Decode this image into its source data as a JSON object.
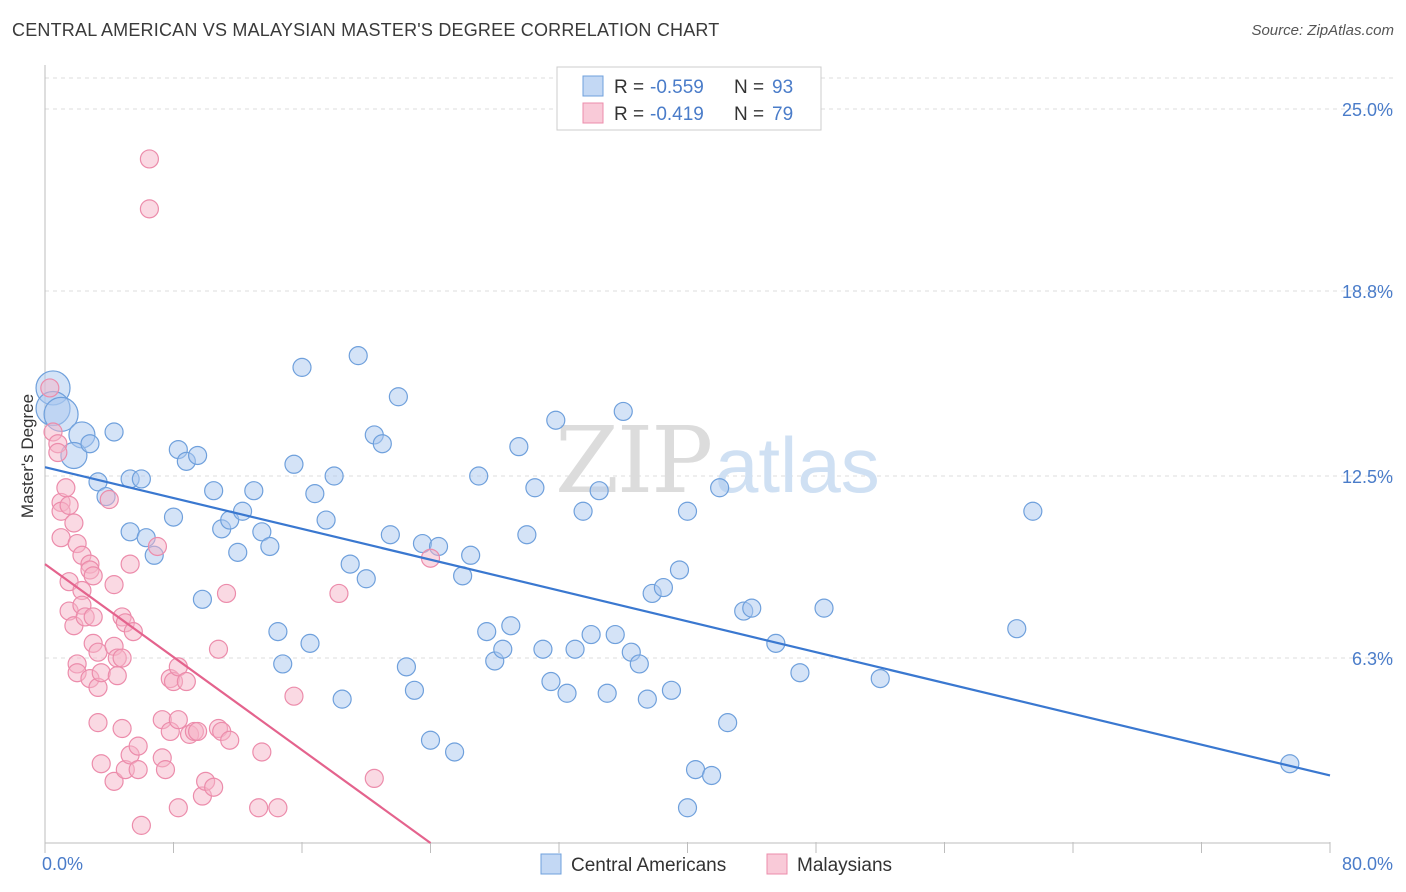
{
  "title": "CENTRAL AMERICAN VS MALAYSIAN MASTER'S DEGREE CORRELATION CHART",
  "source": "Source: ZipAtlas.com",
  "watermark": {
    "zip": "ZIP",
    "atlas": "atlas"
  },
  "chart_data": {
    "type": "scatter",
    "ylabel": "Master's Degree",
    "xlim": [
      0,
      80
    ],
    "ylim": [
      0,
      26.5
    ],
    "y_ticks": [
      {
        "value": 6.3,
        "label": "6.3%"
      },
      {
        "value": 12.5,
        "label": "12.5%"
      },
      {
        "value": 18.8,
        "label": "18.8%"
      },
      {
        "value": 25.0,
        "label": "25.0%"
      }
    ],
    "x_tick_labels": [
      {
        "value": 0,
        "label": "0.0%"
      },
      {
        "value": 80,
        "label": "80.0%"
      }
    ],
    "legend_box": [
      {
        "r_label": "R =",
        "r_value": "-0.559",
        "n_label": "N =",
        "n_value": "93",
        "color": "#a9c8f0"
      },
      {
        "r_label": "R =",
        "r_value": "-0.419",
        "n_label": "N =",
        "n_value": "79",
        "color": "#f6b3c8"
      }
    ],
    "series": [
      {
        "name": "Central Americans",
        "color": "#a9c8f0",
        "stroke": "#6fa0dc",
        "line_color": "#3a78d0",
        "trend": {
          "x0": 0,
          "y0": 12.8,
          "x1": 80,
          "y1": 2.3
        },
        "points": [
          [
            0.5,
            15.5,
            "l"
          ],
          [
            0.5,
            14.8,
            "l"
          ],
          [
            1,
            14.6,
            "l"
          ],
          [
            2.3,
            13.9,
            "m"
          ],
          [
            1.8,
            13.2,
            "m"
          ],
          [
            2.8,
            13.6
          ],
          [
            4.3,
            14.0
          ],
          [
            3.3,
            12.3
          ],
          [
            5.3,
            12.4
          ],
          [
            6.0,
            12.4
          ],
          [
            3.8,
            11.8
          ],
          [
            5.3,
            10.6
          ],
          [
            6.3,
            10.4
          ],
          [
            6.8,
            9.8
          ],
          [
            8.0,
            11.1
          ],
          [
            8.3,
            13.4
          ],
          [
            8.8,
            13.0
          ],
          [
            9.5,
            13.2
          ],
          [
            9.8,
            8.3
          ],
          [
            10.5,
            12.0
          ],
          [
            11.0,
            10.7
          ],
          [
            11.5,
            11.0
          ],
          [
            12.0,
            9.9
          ],
          [
            12.3,
            11.3
          ],
          [
            13.0,
            12.0
          ],
          [
            13.5,
            10.6
          ],
          [
            14.0,
            10.1
          ],
          [
            14.5,
            7.2
          ],
          [
            14.8,
            6.1
          ],
          [
            15.5,
            12.9
          ],
          [
            16.0,
            16.2
          ],
          [
            16.5,
            6.8
          ],
          [
            16.8,
            11.9
          ],
          [
            17.5,
            11.0
          ],
          [
            18.0,
            12.5
          ],
          [
            18.5,
            4.9
          ],
          [
            19.0,
            9.5
          ],
          [
            19.5,
            16.6
          ],
          [
            20.0,
            9.0
          ],
          [
            20.5,
            13.9
          ],
          [
            21.0,
            13.6
          ],
          [
            21.5,
            10.5
          ],
          [
            22.0,
            15.2
          ],
          [
            22.5,
            6.0
          ],
          [
            23.0,
            5.2
          ],
          [
            23.5,
            10.2
          ],
          [
            24.0,
            3.5
          ],
          [
            24.5,
            10.1
          ],
          [
            25.5,
            3.1
          ],
          [
            26.0,
            9.1
          ],
          [
            26.5,
            9.8
          ],
          [
            27.0,
            12.5
          ],
          [
            27.5,
            7.2
          ],
          [
            28.0,
            6.2
          ],
          [
            28.5,
            6.6
          ],
          [
            29.0,
            7.4
          ],
          [
            29.5,
            13.5
          ],
          [
            30.0,
            10.5
          ],
          [
            30.5,
            12.1
          ],
          [
            31.0,
            6.6
          ],
          [
            31.5,
            5.5
          ],
          [
            31.8,
            14.4
          ],
          [
            32.5,
            5.1
          ],
          [
            33.0,
            6.6
          ],
          [
            33.5,
            11.3
          ],
          [
            34.0,
            7.1
          ],
          [
            34.5,
            12.0
          ],
          [
            35.0,
            5.1
          ],
          [
            35.5,
            7.1
          ],
          [
            36.0,
            14.7
          ],
          [
            36.5,
            6.5
          ],
          [
            37.0,
            6.1
          ],
          [
            37.5,
            4.9
          ],
          [
            37.8,
            8.5
          ],
          [
            38.5,
            8.7
          ],
          [
            39.0,
            5.2
          ],
          [
            39.5,
            9.3
          ],
          [
            40.0,
            11.3
          ],
          [
            40.0,
            1.2
          ],
          [
            40.5,
            2.5
          ],
          [
            41.5,
            2.3
          ],
          [
            42.0,
            12.1
          ],
          [
            42.5,
            4.1
          ],
          [
            43.5,
            7.9
          ],
          [
            44.0,
            8.0
          ],
          [
            45.5,
            6.8
          ],
          [
            47.0,
            5.8
          ],
          [
            48.5,
            8.0
          ],
          [
            52.0,
            5.6
          ],
          [
            60.5,
            7.3
          ],
          [
            61.5,
            11.3
          ],
          [
            77.5,
            2.7
          ]
        ]
      },
      {
        "name": "Malaysians",
        "color": "#f6b3c8",
        "stroke": "#ec8cab",
        "line_color": "#e4638d",
        "trend": {
          "x0": 0,
          "y0": 9.5,
          "x1": 24,
          "y1": 0
        },
        "points": [
          [
            0.3,
            15.5
          ],
          [
            0.5,
            14.0
          ],
          [
            0.8,
            13.6
          ],
          [
            0.8,
            13.3
          ],
          [
            1.0,
            11.6
          ],
          [
            1.0,
            11.3
          ],
          [
            1.0,
            10.4
          ],
          [
            1.3,
            12.1
          ],
          [
            1.5,
            11.5
          ],
          [
            1.5,
            8.9
          ],
          [
            1.5,
            7.9
          ],
          [
            1.8,
            10.9
          ],
          [
            1.8,
            7.4
          ],
          [
            2.0,
            10.2
          ],
          [
            2.0,
            6.1
          ],
          [
            2.0,
            5.8
          ],
          [
            2.3,
            9.8
          ],
          [
            2.3,
            8.6
          ],
          [
            2.3,
            8.1
          ],
          [
            2.5,
            7.7
          ],
          [
            2.8,
            9.5
          ],
          [
            2.8,
            9.3
          ],
          [
            2.8,
            5.6
          ],
          [
            3.0,
            9.1
          ],
          [
            3.0,
            7.7
          ],
          [
            3.0,
            6.8
          ],
          [
            3.3,
            6.5
          ],
          [
            3.3,
            5.3
          ],
          [
            3.3,
            4.1
          ],
          [
            3.5,
            5.8
          ],
          [
            3.5,
            2.7
          ],
          [
            4.0,
            11.7
          ],
          [
            4.3,
            8.8
          ],
          [
            4.3,
            6.7
          ],
          [
            4.3,
            2.1
          ],
          [
            4.5,
            6.3
          ],
          [
            4.5,
            5.7
          ],
          [
            4.8,
            7.7
          ],
          [
            4.8,
            6.3
          ],
          [
            4.8,
            3.9
          ],
          [
            5.0,
            7.5
          ],
          [
            5.0,
            2.5
          ],
          [
            5.3,
            9.5
          ],
          [
            5.3,
            3.0
          ],
          [
            5.5,
            7.2
          ],
          [
            5.8,
            3.3
          ],
          [
            5.8,
            2.5
          ],
          [
            6.0,
            0.6
          ],
          [
            6.5,
            23.3
          ],
          [
            6.5,
            21.6
          ],
          [
            7.0,
            10.1
          ],
          [
            7.3,
            4.2
          ],
          [
            7.3,
            2.9
          ],
          [
            7.5,
            2.5
          ],
          [
            7.8,
            5.6
          ],
          [
            7.8,
            3.8
          ],
          [
            8.0,
            5.5
          ],
          [
            8.3,
            4.2
          ],
          [
            8.3,
            1.2
          ],
          [
            8.3,
            6.0
          ],
          [
            8.8,
            5.5
          ],
          [
            9.0,
            3.7
          ],
          [
            9.3,
            3.8
          ],
          [
            9.5,
            3.8
          ],
          [
            9.8,
            1.6
          ],
          [
            10.0,
            2.1
          ],
          [
            10.5,
            1.9
          ],
          [
            10.8,
            6.6
          ],
          [
            10.8,
            3.9
          ],
          [
            11.0,
            3.8
          ],
          [
            11.3,
            8.5
          ],
          [
            11.5,
            3.5
          ],
          [
            13.3,
            1.2
          ],
          [
            13.5,
            3.1
          ],
          [
            14.5,
            1.2
          ],
          [
            15.5,
            5.0
          ],
          [
            18.3,
            8.5
          ],
          [
            20.5,
            2.2
          ],
          [
            24.0,
            9.7
          ]
        ]
      }
    ]
  }
}
